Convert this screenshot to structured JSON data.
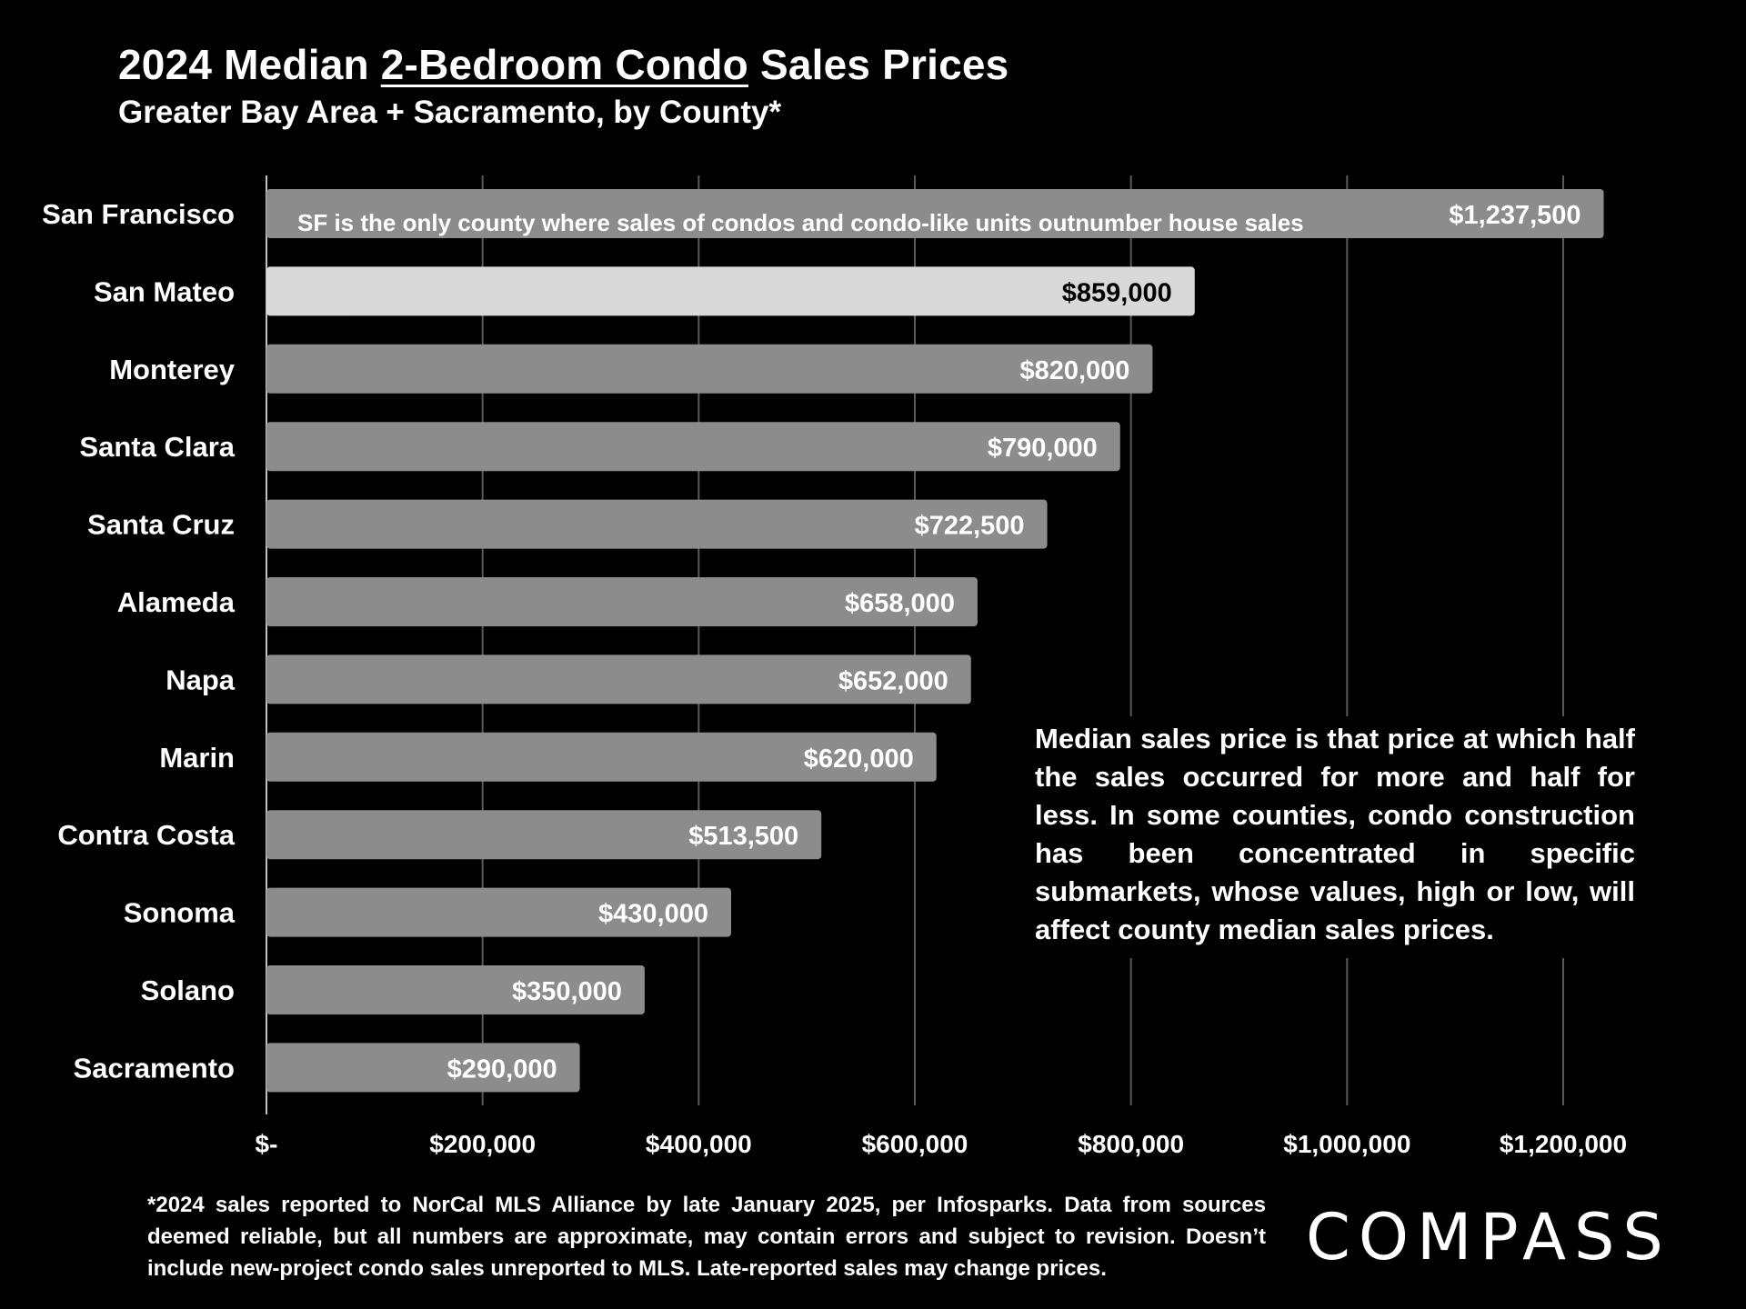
{
  "header": {
    "title_pre": "2024 Median ",
    "title_underlined": "2-Bedroom Condo",
    "title_post": " Sales Prices",
    "subtitle": "Greater Bay Area + Sacramento, by County*"
  },
  "chart_data": {
    "type": "bar",
    "orientation": "horizontal",
    "title": "2024 Median 2-Bedroom Condo Sales Prices",
    "subtitle": "Greater Bay Area + Sacramento, by County*",
    "categories": [
      "San Francisco",
      "San Mateo",
      "Monterey",
      "Santa Clara",
      "Santa Cruz",
      "Alameda",
      "Napa",
      "Marin",
      "Contra Costa",
      "Sonoma",
      "Solano",
      "Sacramento"
    ],
    "values": [
      1237500,
      859000,
      820000,
      790000,
      722500,
      658000,
      652000,
      620000,
      513500,
      430000,
      350000,
      290000
    ],
    "value_labels": [
      "$1,237,500",
      "$859,000",
      "$820,000",
      "$790,000",
      "$722,500",
      "$658,000",
      "$652,000",
      "$620,000",
      "$513,500",
      "$430,000",
      "$350,000",
      "$290,000"
    ],
    "highlight": "San Mateo",
    "xlim": [
      0,
      1200000
    ],
    "x_ticks": [
      0,
      200000,
      400000,
      600000,
      800000,
      1000000,
      1200000
    ],
    "x_tick_labels": [
      "$-",
      "$200,000",
      "$400,000",
      "$600,000",
      "$800,000",
      "$1,000,000",
      "$1,200,000"
    ],
    "grid": "vertical",
    "bar_color": "#8c8c8c",
    "highlight_color": "#d9d9d9",
    "bar_annotation": "SF is the only county where sales of condos and condo-like units outnumber house sales"
  },
  "side_note": "Median sales price is that price at which half the sales occurred for more and half for less. In some counties, condo construction has been concentrated in specific submarkets, whose values, high or low, will affect county median sales prices.",
  "footnote": "*2024 sales reported to NorCal MLS Alliance by late January 2025, per Infosparks. Data from sources deemed reliable, but all numbers are approximate, may contain errors and subject to revision. Doesn’t include new-project condo sales unreported to MLS. Late-reported sales may change prices.",
  "logo": {
    "text": "COMPASS"
  }
}
